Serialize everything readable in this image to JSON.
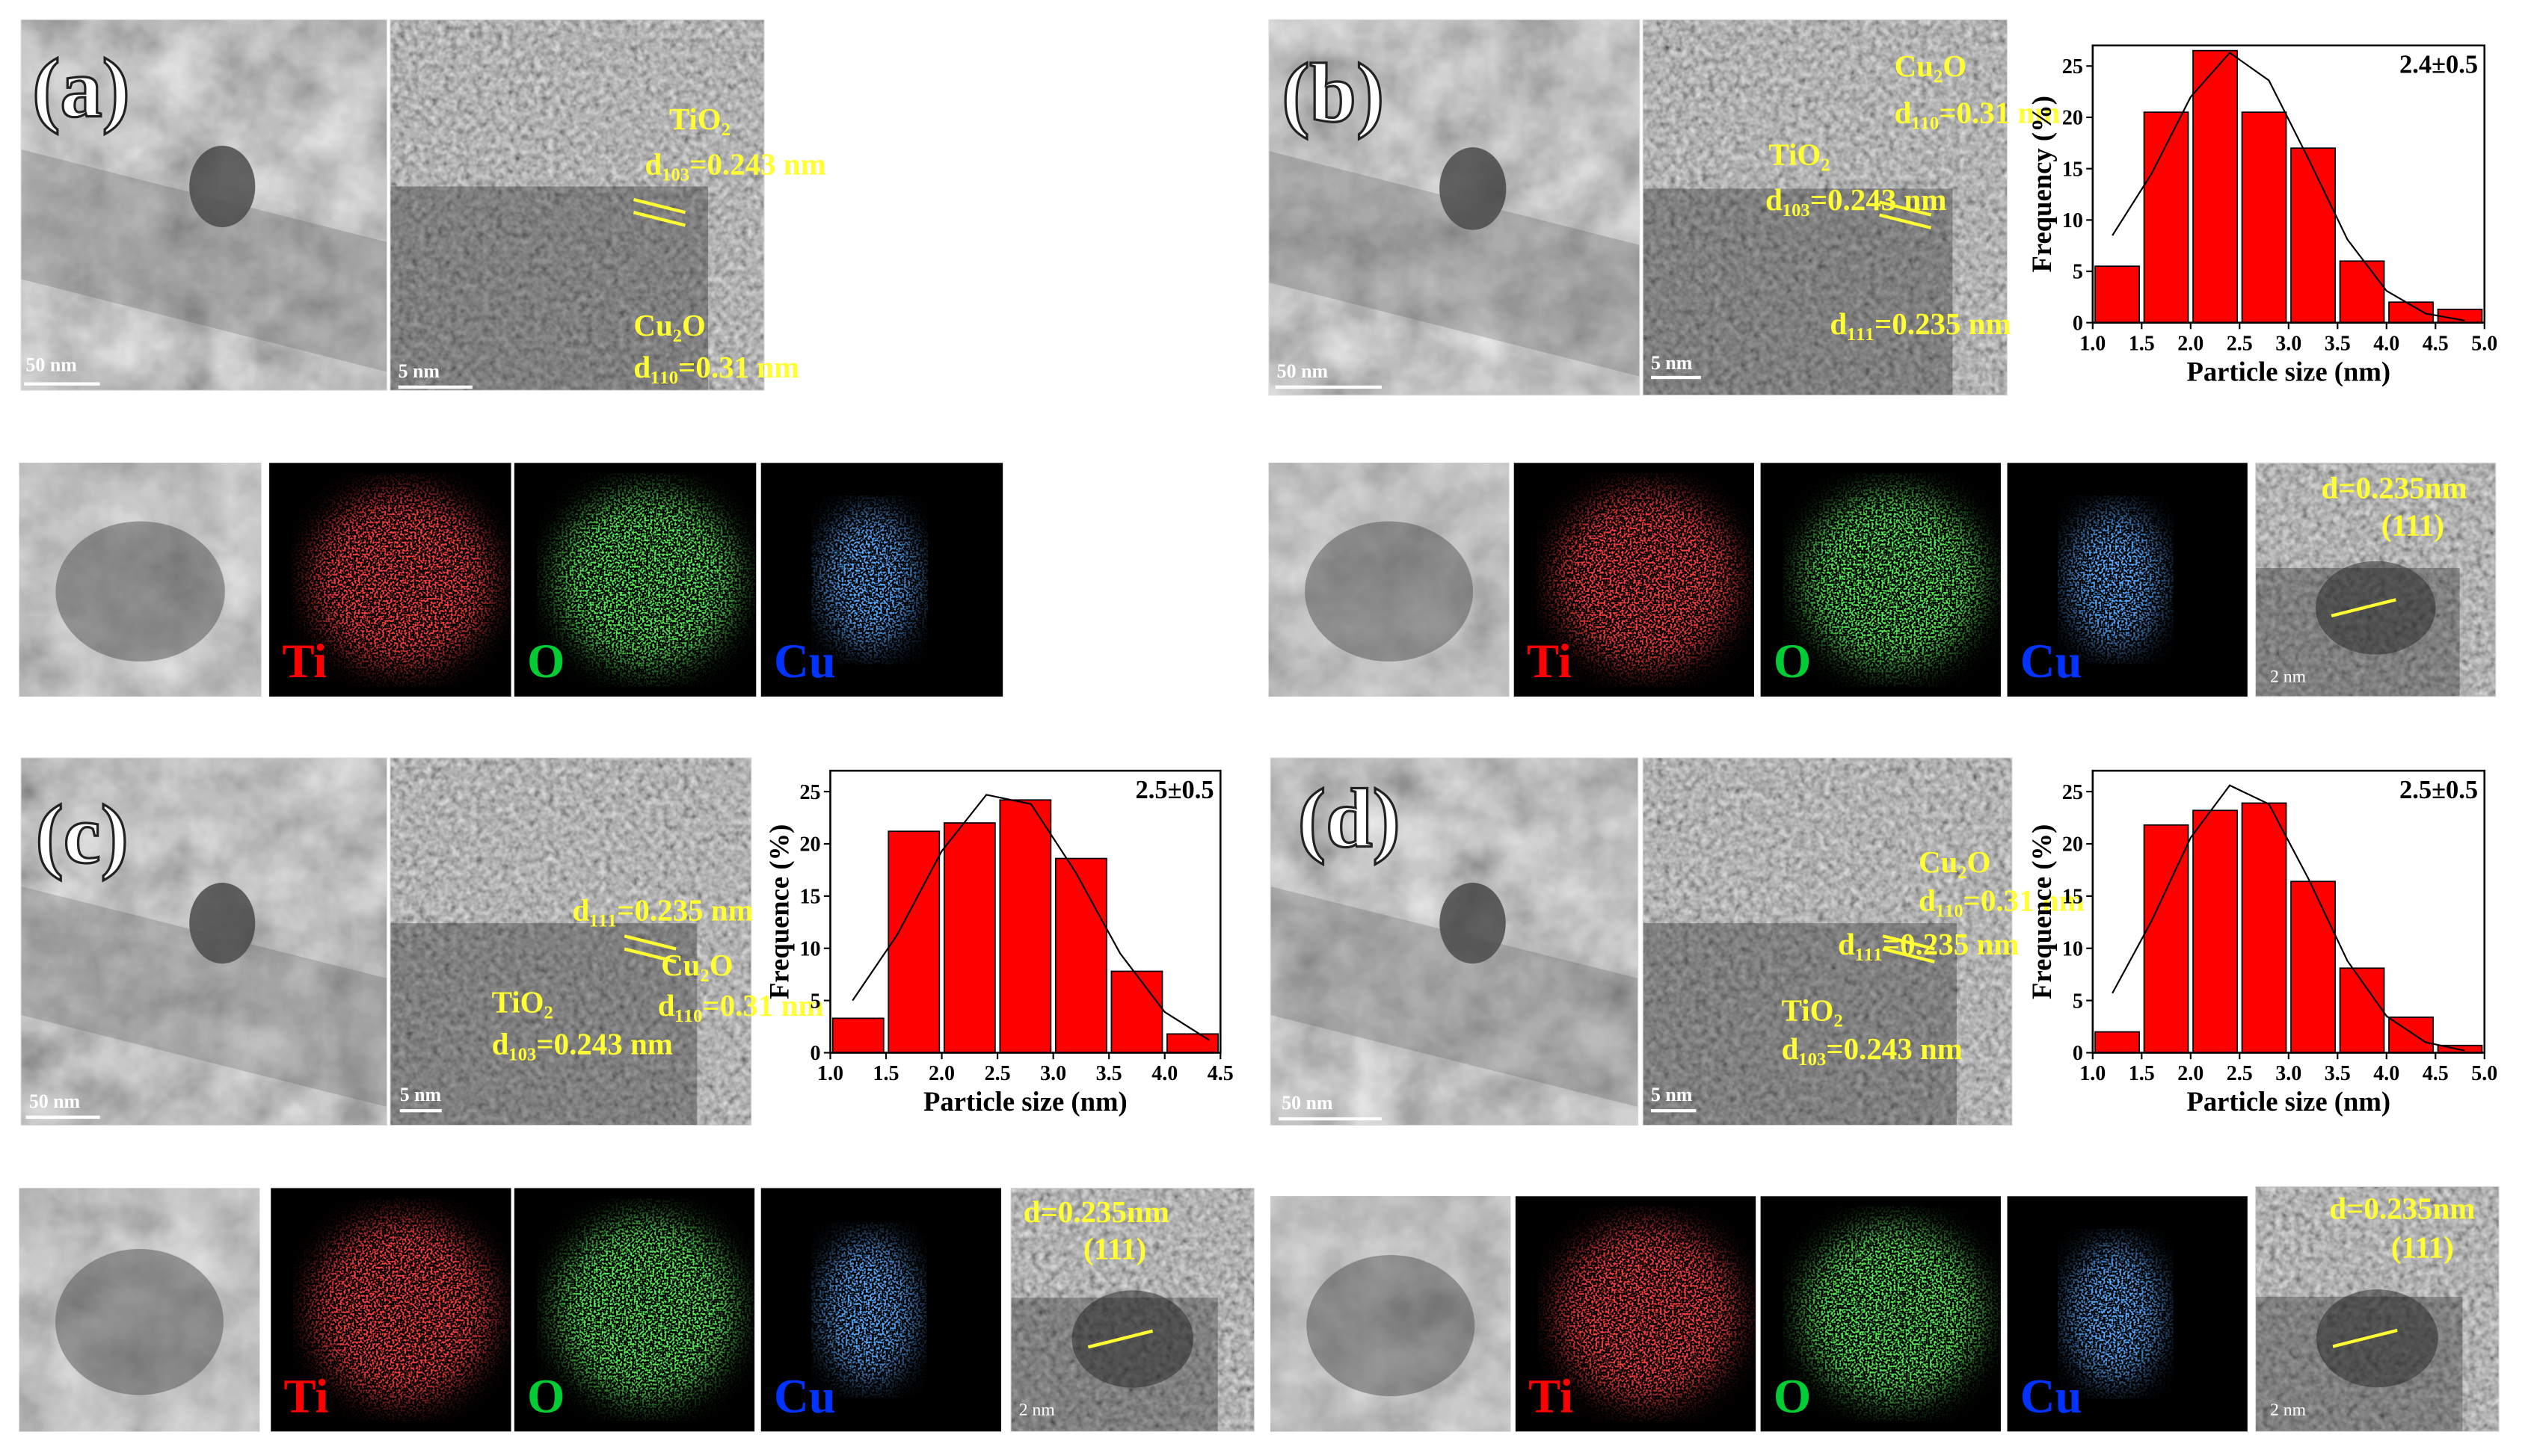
{
  "chart_data": [
    {
      "type": "histogram",
      "panel": "(b)",
      "annotation": "2.4±0.5",
      "x_label": "Particle size (nm)",
      "y_label": "Frequency (%)",
      "color": "#ff0000",
      "bins": [
        1.0,
        1.5,
        2.0,
        2.5,
        3.0,
        3.5,
        4.0,
        4.5,
        5.0
      ],
      "values": [
        5.5,
        20.5,
        26.5,
        20.5,
        17,
        6,
        2,
        1.3
      ],
      "fit": {
        "x": [
          1.2,
          1.6,
          2.0,
          2.4,
          2.8,
          3.2,
          3.6,
          4.0,
          4.4,
          4.8
        ],
        "y": [
          8.5,
          14.5,
          22,
          26.3,
          23.6,
          16,
          8.1,
          3.1,
          0.9,
          0.2
        ]
      },
      "xlim": [
        1.0,
        5.0
      ],
      "ylim": [
        0,
        27
      ],
      "xticks": [
        {
          "value": 1,
          "label": "1.0"
        },
        {
          "value": 1.5,
          "label": "1.5"
        },
        {
          "value": 2,
          "label": "2.0"
        },
        {
          "value": 2.5,
          "label": "2.5"
        },
        {
          "value": 3,
          "label": "3.0"
        },
        {
          "value": 3.5,
          "label": "3.5"
        },
        {
          "value": 4,
          "label": "4.0"
        },
        {
          "value": 4.5,
          "label": "4.5"
        },
        {
          "value": 5,
          "label": "5.0"
        }
      ],
      "yticks": [
        0,
        5,
        10,
        15,
        20,
        25
      ]
    },
    {
      "type": "histogram",
      "panel": "(c)",
      "annotation": "2.5±0.5",
      "x_label": "Particle size (nm)",
      "y_label": "Frequence (%)",
      "color": "#ff0000",
      "bins": [
        1.0,
        1.5,
        2.0,
        2.5,
        3.0,
        3.5,
        4.0,
        4.5
      ],
      "values": [
        3.3,
        21.2,
        22,
        24.2,
        18.6,
        7.8,
        1.8
      ],
      "fit": {
        "x": [
          1.2,
          1.6,
          2.0,
          2.4,
          2.8,
          3.2,
          3.6,
          4.0,
          4.4
        ],
        "y": [
          5.0,
          11.3,
          19.3,
          24.7,
          23.8,
          17.3,
          9.5,
          3.9,
          1.2
        ]
      },
      "xlim": [
        1.0,
        4.5
      ],
      "ylim": [
        0,
        27
      ],
      "xticks": [
        {
          "value": 1,
          "label": "1.0"
        },
        {
          "value": 1.5,
          "label": "1.5"
        },
        {
          "value": 2,
          "label": "2.0"
        },
        {
          "value": 2.5,
          "label": "2.5"
        },
        {
          "value": 3,
          "label": "3.0"
        },
        {
          "value": 3.5,
          "label": "3.5"
        },
        {
          "value": 4,
          "label": "4.0"
        },
        {
          "value": 4.5,
          "label": "4.5"
        }
      ],
      "yticks": [
        0,
        5,
        10,
        15,
        20,
        25
      ]
    },
    {
      "type": "histogram",
      "panel": "(d)",
      "annotation": "2.5±0.5",
      "x_label": "Particle size (nm)",
      "y_label": "Frequence (%)",
      "color": "#ff0000",
      "bins": [
        1.0,
        1.5,
        2.0,
        2.5,
        3.0,
        3.5,
        4.0,
        4.5,
        5.0
      ],
      "values": [
        2,
        21.8,
        23.2,
        23.9,
        16.4,
        8.1,
        3.4,
        0.7
      ],
      "fit": {
        "x": [
          1.2,
          1.6,
          2.0,
          2.4,
          2.8,
          3.2,
          3.6,
          4.0,
          4.4,
          4.8
        ],
        "y": [
          5.7,
          12.6,
          20.6,
          25.6,
          23.8,
          16.7,
          8.8,
          3.5,
          1.0,
          0.2
        ]
      },
      "xlim": [
        1.0,
        5.0
      ],
      "ylim": [
        0,
        27
      ],
      "xticks": [
        {
          "value": 1,
          "label": "1.0"
        },
        {
          "value": 1.5,
          "label": "1.5"
        },
        {
          "value": 2,
          "label": "2.0"
        },
        {
          "value": 2.5,
          "label": "2.5"
        },
        {
          "value": 3,
          "label": "3.0"
        },
        {
          "value": 3.5,
          "label": "3.5"
        },
        {
          "value": 4,
          "label": "4.0"
        },
        {
          "value": 4.5,
          "label": "4.5"
        },
        {
          "value": 5,
          "label": "5.0"
        }
      ],
      "yticks": [
        0,
        5,
        10,
        15,
        20,
        25
      ]
    }
  ],
  "panels": [
    {
      "label": "(a)",
      "scale_bars": [
        "50 nm",
        "5 nm"
      ],
      "annotations": [
        "TiO₂",
        "d₁₀₃=0.243 nm",
        "Cu₂O",
        "d₁₁₀=0.31 nm"
      ],
      "maps": [
        "Ti",
        "O",
        "Cu"
      ]
    },
    {
      "label": "(b)",
      "scale_bars": [
        "50 nm",
        "5 nm"
      ],
      "annotations": [
        "Cu₂O",
        "d₁₁₀=0.31 nm",
        "TiO₂",
        "d₁₀₃=0.243 nm",
        "d₁₁₁=0.235 nm"
      ],
      "maps": [
        "Ti",
        "O",
        "Cu"
      ],
      "inset": {
        "d": "d=0.235nm",
        "plane": "(111)",
        "scale": "2 nm"
      }
    },
    {
      "label": "(c)",
      "scale_bars": [
        "50 nm",
        "5 nm"
      ],
      "annotations": [
        "d₁₁₁=0.235 nm",
        "Cu₂O",
        "TiO₂",
        "d₁₁₀=0.31 nm",
        "d₁₀₃=0.243 nm"
      ],
      "maps": [
        "Ti",
        "O",
        "Cu"
      ],
      "inset": {
        "d": "d=0.235nm",
        "plane": "(111)",
        "scale": "2 nm"
      }
    },
    {
      "label": "(d)",
      "scale_bars": [
        "50 nm",
        "5 nm"
      ],
      "annotations": [
        "Cu₂O",
        "d₁₁₀=0.31 nm",
        "d₁₁₁=0.235 nm",
        "TiO₂",
        "d₁₀₃=0.243 nm"
      ],
      "maps": [
        "Ti",
        "O",
        "Cu"
      ],
      "inset": {
        "d": "d=0.235nm",
        "plane": "(111)",
        "scale": "2 nm"
      }
    }
  ]
}
